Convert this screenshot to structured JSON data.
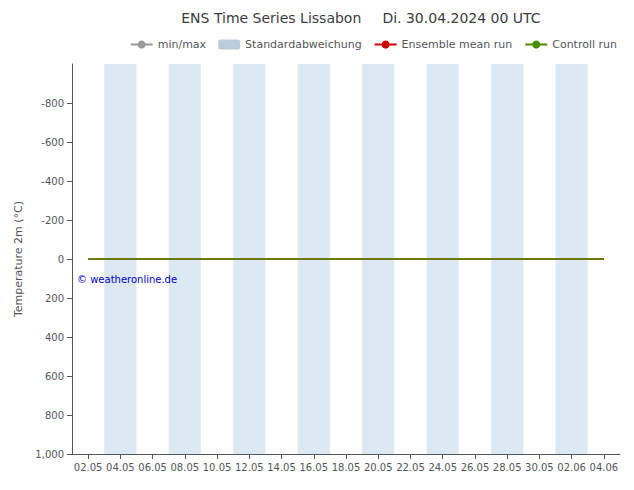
{
  "chart_data": {
    "type": "line",
    "title": "ENS Time Series Lissabon",
    "subtitle": "Di. 30.04.2024 00 UTC",
    "y_label": "Temperature 2m (°C)",
    "categories": [
      "02.05",
      "04.05",
      "06.05",
      "08.05",
      "10.05",
      "12.05",
      "14.05",
      "16.05",
      "18.05",
      "20.05",
      "22.05",
      "24.05",
      "26.05",
      "28.05",
      "30.05",
      "02.06",
      "04.06"
    ],
    "series": [
      {
        "name": "min/max",
        "type": "line",
        "color": "#999999",
        "values": [
          null,
          null,
          null,
          null,
          null,
          null,
          null,
          null,
          null,
          null,
          null,
          null,
          null,
          null,
          null,
          null,
          null
        ]
      },
      {
        "name": "Standardabweichung",
        "type": "bar",
        "color": "#bbccdd",
        "values": [
          null,
          null,
          null,
          null,
          null,
          null,
          null,
          null,
          null,
          null,
          null,
          null,
          null,
          null,
          null,
          null,
          null
        ]
      },
      {
        "name": "Ensemble mean run",
        "type": "line",
        "color": "#cc0000",
        "values": [
          0,
          0,
          0,
          0,
          0,
          0,
          0,
          0,
          0,
          0,
          0,
          0,
          0,
          0,
          0,
          0,
          0
        ]
      },
      {
        "name": "Controll run",
        "type": "line",
        "color": "#4a8c00",
        "values": [
          0,
          0,
          0,
          0,
          0,
          0,
          0,
          0,
          0,
          0,
          0,
          0,
          0,
          0,
          0,
          0,
          0
        ]
      }
    ],
    "ylim": [
      1000,
      -1000
    ],
    "yticks": [
      -800,
      -600,
      -400,
      -200,
      0,
      200,
      400,
      600,
      800,
      1000
    ],
    "grid": false,
    "legend": "upper right",
    "annotations": [
      {
        "text": "© weatheronline.de",
        "color": "#0000cc"
      }
    ],
    "bands": {
      "categories": [
        "04.05",
        "08.05",
        "12.05",
        "16.05",
        "20.05",
        "24.05",
        "28.05",
        "02.06"
      ],
      "color": "#cfe0ed"
    }
  }
}
